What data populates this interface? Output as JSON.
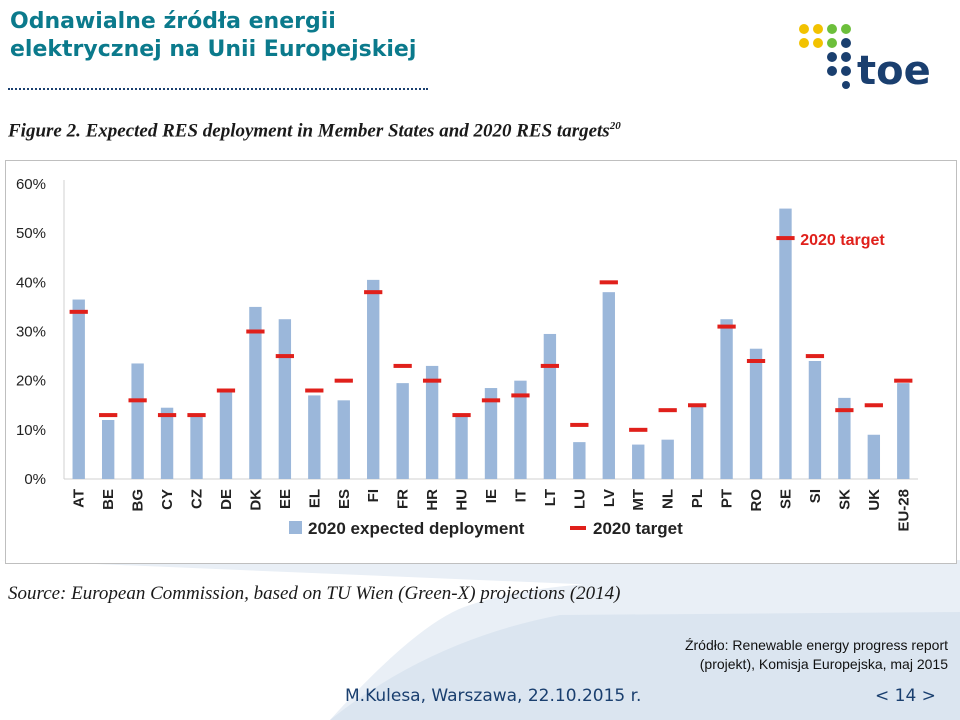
{
  "slide": {
    "title_line1": "Odnawialne źródła energii",
    "title_line2": "elektrycznej na Unii Europejskiej",
    "logo_text": "toe",
    "figure_caption": "Figure 2. Expected RES deployment in Member States and 2020 RES targets",
    "figure_caption_sup": "20",
    "source_line": "Source: European Commission, based on TU Wien (Green-X) projections (2014)",
    "zrodlo_line1": "Źródło: Renewable energy progress report",
    "zrodlo_line2": "(projekt), Komisja Europejska, maj 2015",
    "footer_author": "M.Kulesa, Warszawa, 22.10.2015 r.",
    "footer_page": "< 14 >"
  },
  "colors": {
    "title": "#0b7a8c",
    "bar": "#9bb7da",
    "target": "#e0201b",
    "logo_yellow": "#f2c200",
    "logo_green": "#6cbf3b",
    "logo_navy": "#1a3f6f"
  },
  "chart_data": {
    "type": "bar",
    "categories": [
      "AT",
      "BE",
      "BG",
      "CY",
      "CZ",
      "DE",
      "DK",
      "EE",
      "EL",
      "ES",
      "FI",
      "FR",
      "HR",
      "HU",
      "IE",
      "IT",
      "LT",
      "LU",
      "LV",
      "MT",
      "NL",
      "PL",
      "PT",
      "RO",
      "SE",
      "SI",
      "SK",
      "UK",
      "EU-28"
    ],
    "series": [
      {
        "name": "2020 expected deployment",
        "type": "bar",
        "values": [
          36.5,
          12,
          23.5,
          14.5,
          13,
          18,
          35,
          32.5,
          17,
          16,
          40.5,
          19.5,
          23,
          13,
          18.5,
          20,
          29.5,
          7.5,
          38,
          7,
          8,
          15,
          32.5,
          26.5,
          55,
          24,
          16.5,
          9,
          19.5
        ]
      },
      {
        "name": "2020 target",
        "type": "marker",
        "values": [
          34,
          13,
          16,
          13,
          13,
          18,
          30,
          25,
          18,
          20,
          38,
          23,
          20,
          13,
          16,
          17,
          23,
          11,
          40,
          10,
          14,
          15,
          31,
          24,
          49,
          25,
          14,
          15,
          20
        ]
      }
    ],
    "y_ticks": [
      "0%",
      "10%",
      "20%",
      "30%",
      "40%",
      "50%",
      "60%"
    ],
    "ylim": [
      0,
      60
    ],
    "annotation": "2020 target",
    "legend_position": "bottom",
    "grid": false
  }
}
